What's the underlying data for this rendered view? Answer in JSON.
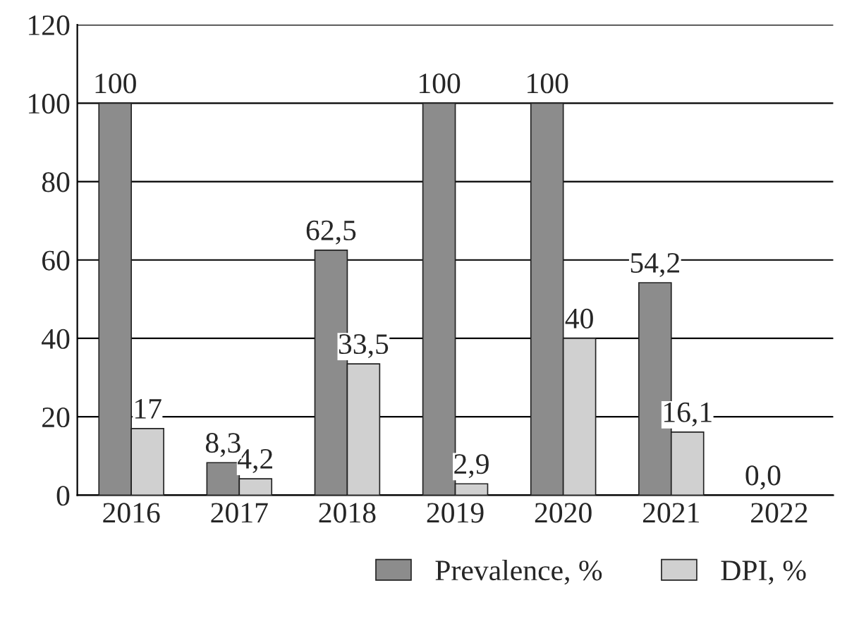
{
  "chart_data": {
    "type": "bar",
    "categories": [
      "2016",
      "2017",
      "2018",
      "2019",
      "2020",
      "2021",
      "2022"
    ],
    "series": [
      {
        "name": "Prevalence, %",
        "color": "#8c8c8c",
        "values": [
          100,
          8.3,
          62.5,
          100,
          100,
          54.2,
          0.0
        ],
        "value_labels": [
          "100",
          "8,3",
          "62,5",
          "100",
          "100",
          "54,2",
          "0,0"
        ]
      },
      {
        "name": "DPI, %",
        "color": "#d0d0d0",
        "values": [
          17,
          4.2,
          33.5,
          2.9,
          40,
          16.1,
          0.0
        ],
        "value_labels": [
          "17",
          "4,2",
          "33,5",
          "2,9",
          "40",
          "16,1",
          null
        ]
      }
    ],
    "ylim": [
      0,
      120
    ],
    "yticks": [
      0,
      20,
      40,
      60,
      80,
      100,
      120
    ],
    "grid": "y",
    "legend": "bottom right"
  }
}
